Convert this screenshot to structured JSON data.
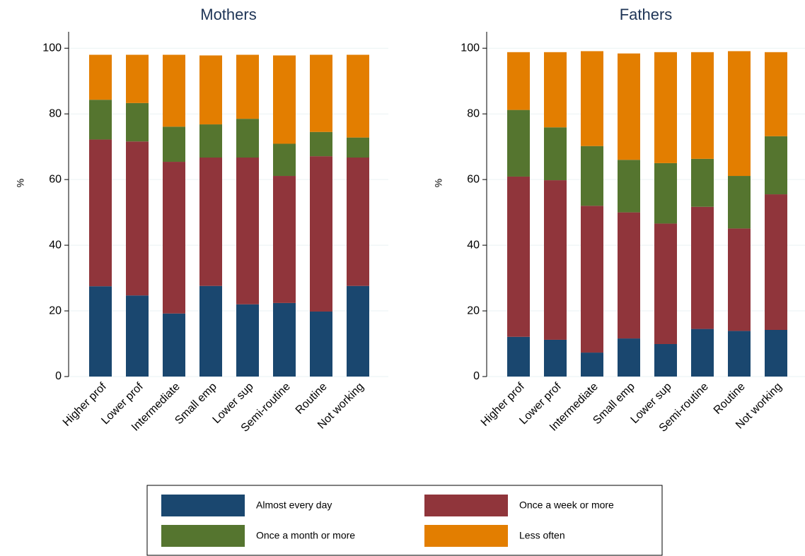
{
  "chart_data": [
    {
      "type": "stacked_bar",
      "title": "Mothers",
      "y_label": "%",
      "categories": [
        "Higher prof",
        "Lower prof",
        "Intermediate",
        "Small emp",
        "Lower sup",
        "Semi-routine",
        "Routine",
        "Not working"
      ],
      "series": [
        {
          "name": "Almost every day",
          "color": "#1a476f",
          "values": [
            27.5,
            24.7,
            19.2,
            27.6,
            22.0,
            22.4,
            19.8,
            27.6
          ]
        },
        {
          "name": "Once a week or more",
          "color": "#90353b",
          "values": [
            44.7,
            46.9,
            46.2,
            39.1,
            44.7,
            38.7,
            47.3,
            39.1
          ]
        },
        {
          "name": "Once a month or more",
          "color": "#55752f",
          "values": [
            12.1,
            11.7,
            10.7,
            10.1,
            11.8,
            9.8,
            7.4,
            6.1
          ]
        },
        {
          "name": "Less often",
          "color": "#e37e00",
          "values": [
            13.7,
            14.7,
            21.9,
            21.0,
            19.5,
            26.9,
            23.5,
            25.2
          ]
        }
      ],
      "ylim": [
        0,
        105
      ],
      "yticks": [
        0,
        20,
        40,
        60,
        80,
        100
      ],
      "grid": true
    },
    {
      "type": "stacked_bar",
      "title": "Fathers",
      "y_label": "%",
      "categories": [
        "Higher prof",
        "Lower prof",
        "Intermediate",
        "Small emp",
        "Lower sup",
        "Semi-routine",
        "Routine",
        "Not working"
      ],
      "series": [
        {
          "name": "Almost every day",
          "color": "#1a476f",
          "values": [
            12.1,
            11.2,
            7.3,
            11.6,
            9.9,
            14.5,
            13.9,
            14.2
          ]
        },
        {
          "name": "Once a week or more",
          "color": "#90353b",
          "values": [
            48.8,
            48.6,
            44.7,
            38.4,
            36.7,
            37.2,
            31.2,
            41.3
          ]
        },
        {
          "name": "Once a month or more",
          "color": "#55752f",
          "values": [
            20.3,
            16.1,
            18.2,
            16.0,
            18.4,
            14.6,
            16.0,
            17.7
          ]
        },
        {
          "name": "Less often",
          "color": "#e37e00",
          "values": [
            17.6,
            22.9,
            28.9,
            32.4,
            33.8,
            32.5,
            38.0,
            25.6
          ]
        }
      ],
      "ylim": [
        0,
        105
      ],
      "yticks": [
        0,
        20,
        40,
        60,
        80,
        100
      ],
      "grid": true
    }
  ]
}
